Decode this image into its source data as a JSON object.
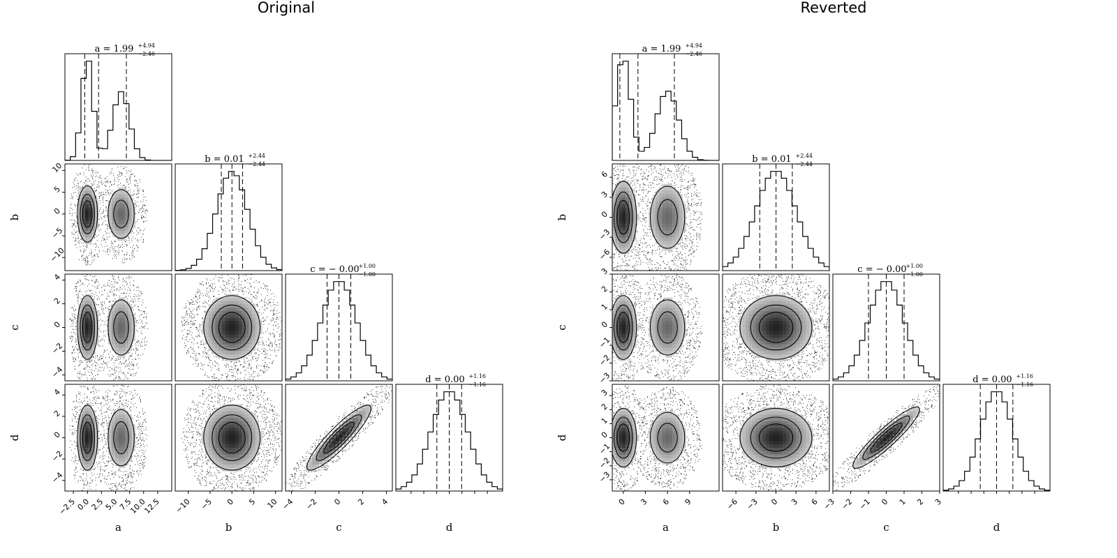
{
  "chart_data": [
    {
      "type": "corner",
      "title": "Original",
      "params": [
        {
          "name": "a",
          "label": "a",
          "hist_title": "a = 1.99",
          "err_plus": "+4.94",
          "err_minus": "−2.46",
          "range": [
            -4,
            15
          ],
          "ticks": [
            -2.5,
            0.0,
            2.5,
            5.0,
            7.5,
            10.0,
            12.5
          ],
          "tick_labels": [
            "−2.5",
            "0.0",
            "2.5",
            "5.0",
            "7.5",
            "10.0",
            "12.5"
          ],
          "quantiles": [
            -0.47,
            1.99,
            6.93
          ],
          "modes": [
            [
              0.0,
              1.0,
              0.5
            ],
            [
              6.0,
              1.5,
              0.5
            ]
          ]
        },
        {
          "name": "b",
          "label": "b",
          "hist_title": "b = 0.01",
          "err_plus": "+2.44",
          "err_minus": "−2.44",
          "range": [
            -13,
            11.5
          ],
          "ticks": [
            -10,
            -5,
            0,
            5,
            10
          ],
          "tick_labels": [
            "−10",
            "−5",
            "0",
            "5",
            "10"
          ],
          "quantiles": [
            -2.43,
            0.01,
            2.45
          ],
          "modes": [
            [
              0.0,
              3.6,
              1.0
            ]
          ]
        },
        {
          "name": "c",
          "label": "c",
          "hist_title": "c = − 0.00",
          "err_plus": "+1.00",
          "err_minus": "−1.00",
          "range": [
            -4.5,
            4.5
          ],
          "ticks": [
            -4,
            -2,
            0,
            2,
            4
          ],
          "tick_labels": [
            "−4",
            "−2",
            "0",
            "2",
            "4"
          ],
          "quantiles": [
            -1.0,
            0.0,
            1.0
          ],
          "modes": [
            [
              0.0,
              1.5,
              1.0
            ]
          ]
        },
        {
          "name": "d",
          "label": "d",
          "hist_title": "d = 0.00",
          "err_plus": "+1.16",
          "err_minus": "−1.16",
          "range": [
            -5,
            5
          ],
          "ticks": [
            -4,
            -2,
            0,
            2,
            4
          ],
          "tick_labels": [
            "−4",
            "−2",
            "0",
            "2",
            "4"
          ],
          "quantiles": [
            -1.16,
            0.0,
            1.16
          ],
          "modes": [
            [
              0.0,
              1.7,
              1.0
            ]
          ]
        }
      ]
    },
    {
      "type": "corner",
      "title": "Reverted",
      "params": [
        {
          "name": "a",
          "label": "a",
          "hist_title": "a = 1.99",
          "err_plus": "+4.94",
          "err_minus": "−2.46",
          "range": [
            -1.5,
            13
          ],
          "ticks": [
            0,
            3,
            6,
            9
          ],
          "tick_labels": [
            "0",
            "3",
            "6",
            "9"
          ],
          "quantiles": [
            -0.47,
            1.99,
            6.93
          ],
          "modes": [
            [
              0.0,
              1.0,
              0.5
            ],
            [
              6.0,
              1.5,
              0.5
            ]
          ]
        },
        {
          "name": "b",
          "label": "b",
          "hist_title": "b = 0.01",
          "err_plus": "+2.44",
          "err_minus": "−2.44",
          "range": [
            -8,
            8
          ],
          "ticks": [
            -6,
            -3,
            0,
            3,
            6
          ],
          "tick_labels": [
            "−6",
            "−3",
            "0",
            "3",
            "6"
          ],
          "quantiles": [
            -2.43,
            0.01,
            2.45
          ],
          "modes": [
            [
              0.0,
              3.0,
              1.0
            ]
          ]
        },
        {
          "name": "c",
          "label": "c",
          "hist_title": "c = − 0.00",
          "err_plus": "+1.00",
          "err_minus": "−1.00",
          "range": [
            -3,
            3
          ],
          "ticks": [
            -3,
            -2,
            -1,
            0,
            1,
            2,
            3
          ],
          "tick_labels": [
            "−3",
            "−2",
            "−1",
            "0",
            "1",
            "2",
            "3"
          ],
          "quantiles": [
            -1.0,
            0.0,
            1.0
          ],
          "modes": [
            [
              0.0,
              1.0,
              1.0
            ]
          ]
        },
        {
          "name": "d",
          "label": "d",
          "hist_title": "d = 0.00",
          "err_plus": "+1.16",
          "err_minus": "−1.16",
          "range": [
            -3.8,
            3.8
          ],
          "ticks": [
            -3,
            -2,
            -1,
            0,
            1,
            2,
            3
          ],
          "tick_labels": [
            "−3",
            "−2",
            "−1",
            "0",
            "1",
            "2",
            "3"
          ],
          "quantiles": [
            -1.16,
            0.0,
            1.16
          ],
          "modes": [
            [
              0.0,
              1.16,
              1.0
            ]
          ]
        }
      ]
    }
  ]
}
